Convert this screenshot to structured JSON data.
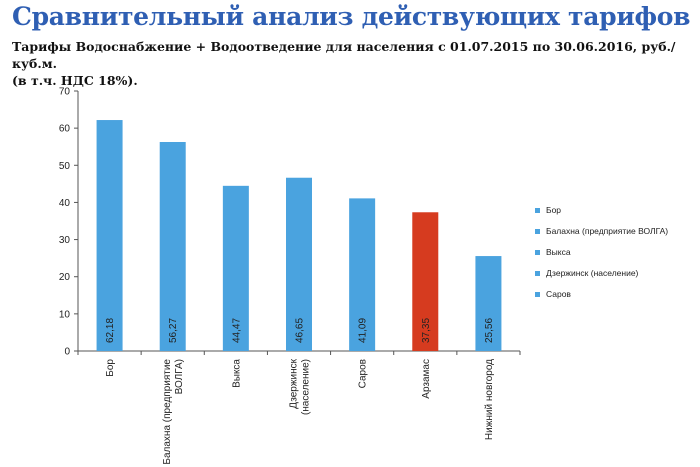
{
  "page": {
    "title": "Сравнительный анализ действующих тарифов",
    "subtitle_line1": "Тарифы Водоснабжение + Водоотведение для населения с 01.07.2015 по 30.06.2016, руб./куб.м.",
    "subtitle_line2": "(в т.ч. НДС 18%)."
  },
  "colors": {
    "bar_default": "#4aa3df",
    "bar_highlight": "#d63b1f",
    "axis": "#555555",
    "grid": "#aaaaaa"
  },
  "chart_data": {
    "type": "bar",
    "categories": [
      [
        "Бор"
      ],
      [
        "Балахна (предприятие",
        "ВОЛГА)"
      ],
      [
        "Выкса"
      ],
      [
        "Дзержинск",
        "(население)"
      ],
      [
        "Саров"
      ],
      [
        "Арзамас"
      ],
      [
        "Нижний новгород"
      ]
    ],
    "values": [
      62.18,
      56.27,
      44.47,
      46.65,
      41.09,
      37.35,
      25.56
    ],
    "data_labels": [
      "62,18",
      "56,27",
      "44,47",
      "46,65",
      "41,09",
      "37,35",
      "25,56"
    ],
    "highlight_index": 5,
    "ylim": [
      0,
      70
    ],
    "yticks": [
      0,
      10,
      20,
      30,
      40,
      50,
      60,
      70
    ],
    "grid": false,
    "legend": {
      "placement": "right",
      "entries": [
        "Бор",
        "Балахна (предприятие ВОЛГА)",
        "Выкса",
        "Дзержинск (население)",
        "Саров"
      ]
    }
  }
}
